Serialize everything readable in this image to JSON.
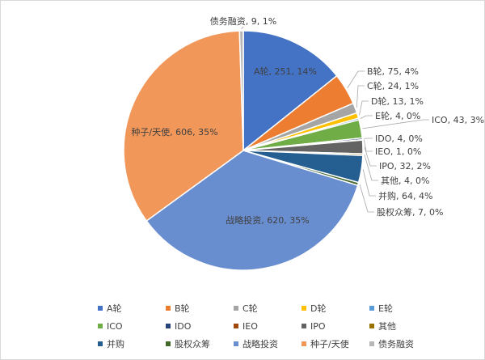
{
  "chart_data": {
    "type": "pie",
    "categories": [
      "A轮",
      "B轮",
      "C轮",
      "D轮",
      "E轮",
      "ICO",
      "IDO",
      "IEO",
      "IPO",
      "其他",
      "并购",
      "股权众筹",
      "战略投资",
      "种子/天使",
      "债务融资"
    ],
    "values": [
      251,
      75,
      24,
      13,
      4,
      43,
      4,
      1,
      32,
      4,
      64,
      7,
      620,
      606,
      9
    ],
    "labels": [
      "A轮, 251, 14%",
      "B轮, 75, 4%",
      "C轮, 24, 1%",
      "D轮, 13, 1%",
      "E轮, 4, 0%",
      "ICO, 43, 3%",
      "IDO, 4, 0%",
      "IEO, 1, 0%",
      "IPO, 32, 2%",
      "其他, 4, 0%",
      "并购, 64, 4%",
      "股权众筹, 7, 0%",
      "战略投资, 620, 35%",
      "种子/天使, 606, 35%",
      "债务融资, 9, 1%"
    ],
    "colors": [
      "#4472C4",
      "#ED7D31",
      "#A5A5A5",
      "#FFC000",
      "#5B9BD5",
      "#70AD47",
      "#264478",
      "#9E480E",
      "#636363",
      "#997300",
      "#255E91",
      "#43682B",
      "#698ED0",
      "#F1975A",
      "#B7B7B7"
    ],
    "legend_position": "bottom"
  }
}
